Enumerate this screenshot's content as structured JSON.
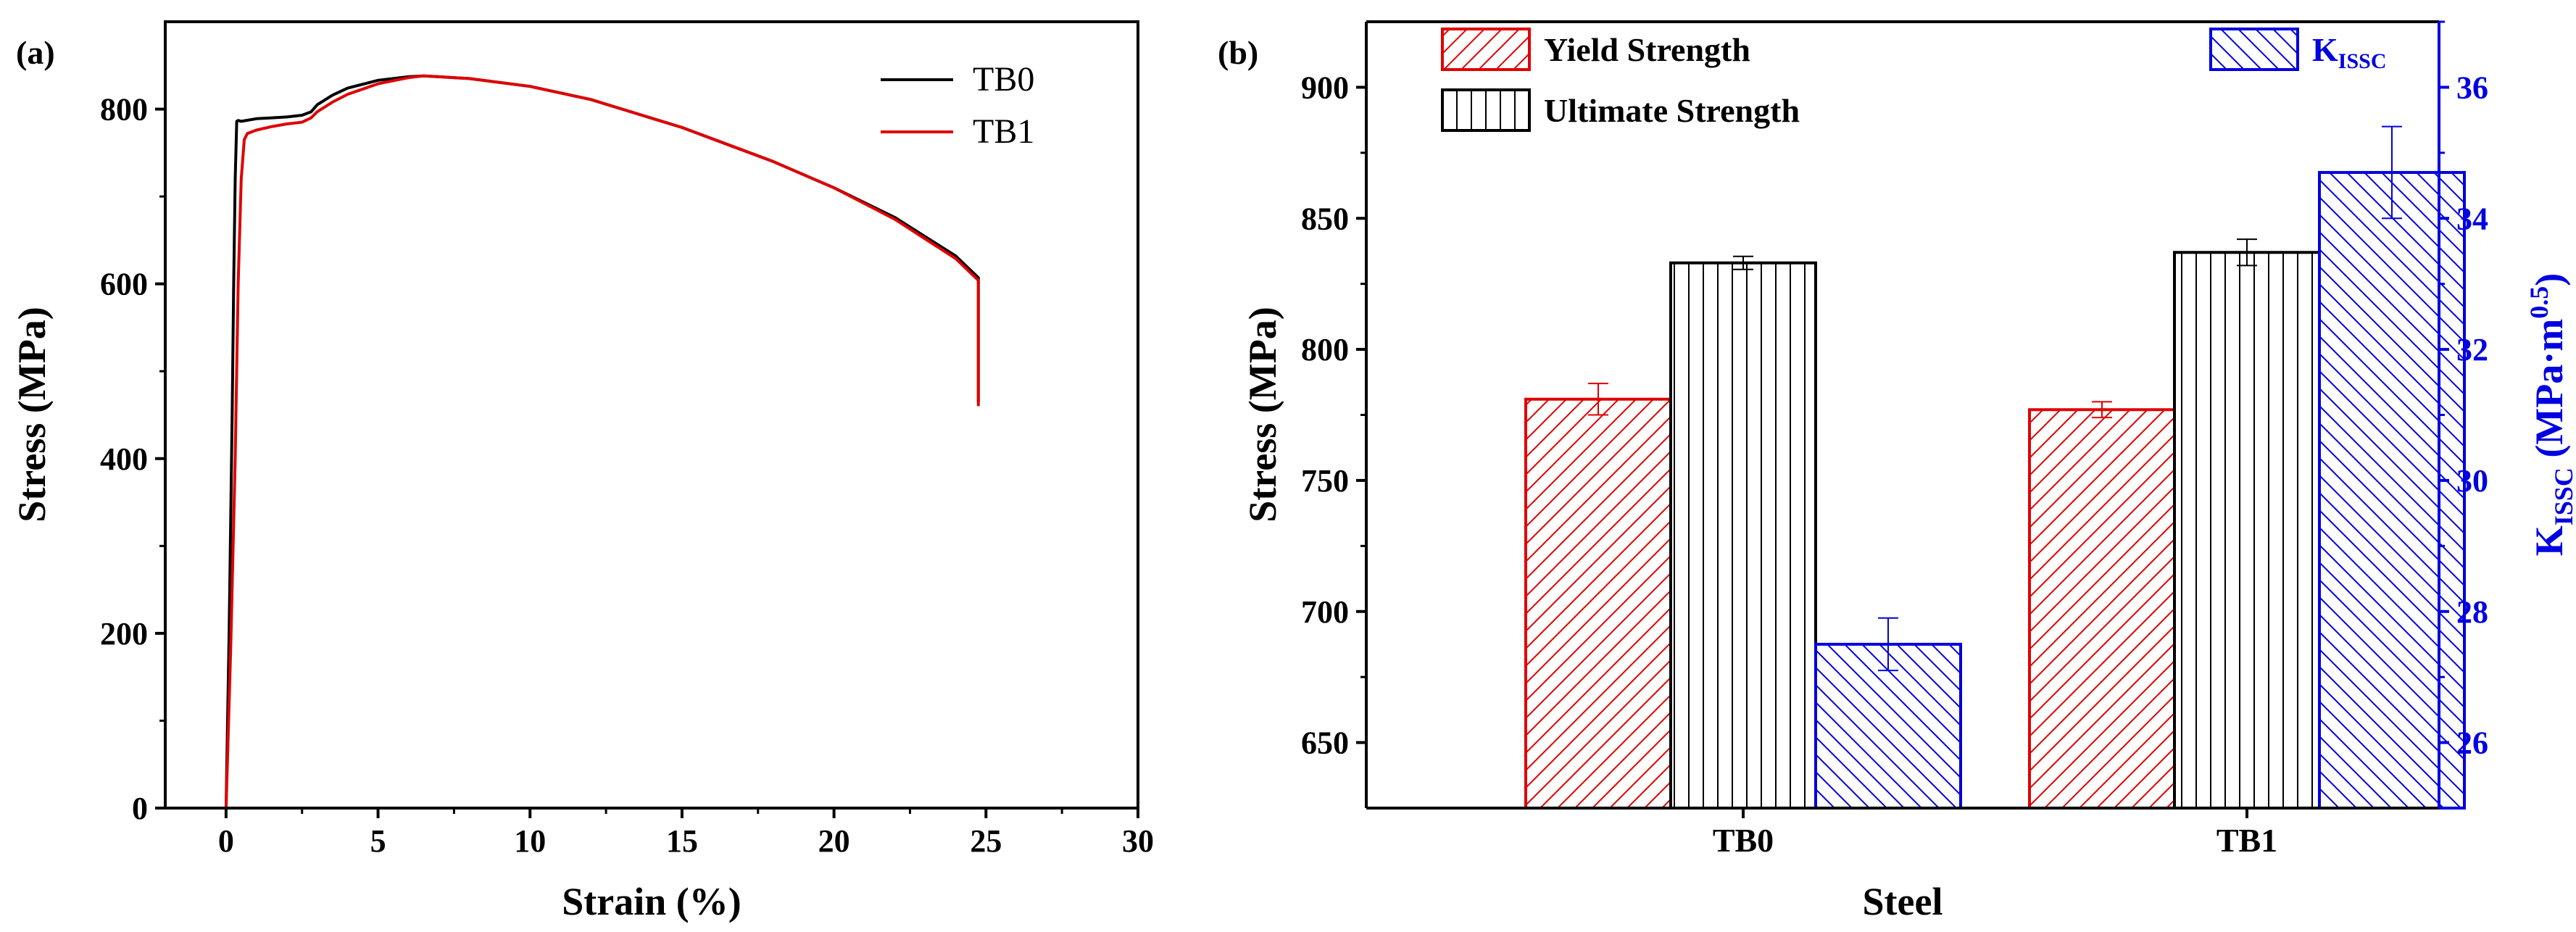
{
  "chart_data": [
    {
      "panel": "(a)",
      "type": "line",
      "xlabel": "Strain (%)",
      "ylabel": "Stress (MPa)",
      "xlim": [
        -2,
        30
      ],
      "ylim": [
        0,
        900
      ],
      "xticks": [
        0,
        5,
        10,
        15,
        20,
        25,
        30
      ],
      "yticks": [
        0,
        200,
        400,
        600,
        800
      ],
      "legend_position": "top-right",
      "series": [
        {
          "name": "TB0",
          "color": "#000000",
          "x": [
            0,
            0.1,
            0.2,
            0.25,
            0.3,
            0.35,
            0.4,
            0.5,
            1.0,
            1.5,
            2.0,
            2.5,
            2.8,
            3.0,
            3.5,
            4.0,
            5.0,
            6.0,
            6.5,
            7.0,
            8.0,
            10.0,
            12.0,
            15.0,
            18.0,
            20.0,
            22.0,
            24.0,
            24.75,
            24.75
          ],
          "y": [
            0,
            200,
            450,
            600,
            720,
            786,
            787,
            786,
            789,
            790,
            791,
            793,
            797,
            805,
            816,
            824,
            833,
            837,
            838,
            837,
            835,
            826,
            811,
            779,
            740,
            710,
            676,
            632,
            607,
            465
          ]
        },
        {
          "name": "TB1",
          "color": "#e00000",
          "x": [
            0,
            0.15,
            0.3,
            0.4,
            0.5,
            0.6,
            0.7,
            1.0,
            1.5,
            2.0,
            2.5,
            2.8,
            3.0,
            3.5,
            4.0,
            5.0,
            6.0,
            6.5,
            7.0,
            8.0,
            10.0,
            12.0,
            15.0,
            18.0,
            20.0,
            22.0,
            24.0,
            24.75,
            24.75
          ],
          "y": [
            0,
            180,
            400,
            600,
            720,
            765,
            772,
            776,
            780,
            783,
            785,
            790,
            797,
            808,
            817,
            829,
            836,
            838,
            837,
            835,
            826,
            811,
            779,
            740,
            710,
            674,
            629,
            604,
            460
          ]
        }
      ]
    },
    {
      "panel": "(b)",
      "type": "bar",
      "xlabel": "Steel",
      "ylabel": "Stress (MPa)",
      "ylabel_right_main": "K",
      "ylabel_right_sub": "ISSC",
      "ylabel_right_unit": " (MPa·m",
      "ylabel_right_sup": "0.5",
      "ylabel_right_close": ")",
      "categories": [
        "TB0",
        "TB1"
      ],
      "ylim": [
        625,
        925
      ],
      "yticks": [
        650,
        700,
        750,
        800,
        850,
        900
      ],
      "ylim_right": [
        25,
        37
      ],
      "yticks_right": [
        26,
        28,
        30,
        32,
        34,
        36
      ],
      "series": [
        {
          "name": "Yield Strength",
          "axis": "left",
          "color": "#e00000",
          "hatch": "diagonal-up",
          "values": [
            781,
            777
          ],
          "errors": [
            6,
            3
          ]
        },
        {
          "name": "Ultimate Strength",
          "axis": "left",
          "color": "#000000",
          "hatch": "vertical",
          "values": [
            833,
            837
          ],
          "errors": [
            2.5,
            5
          ]
        },
        {
          "name": "K_ISSC",
          "axis": "right",
          "color": "#0000e0",
          "hatch": "diagonal-down",
          "values": [
            27.5,
            34.7
          ],
          "errors": [
            0.4,
            0.7
          ]
        }
      ],
      "legend": {
        "yield": "Yield Strength",
        "ultimate": "Ultimate Strength",
        "k_main": "K",
        "k_sub": "ISSC"
      }
    }
  ]
}
